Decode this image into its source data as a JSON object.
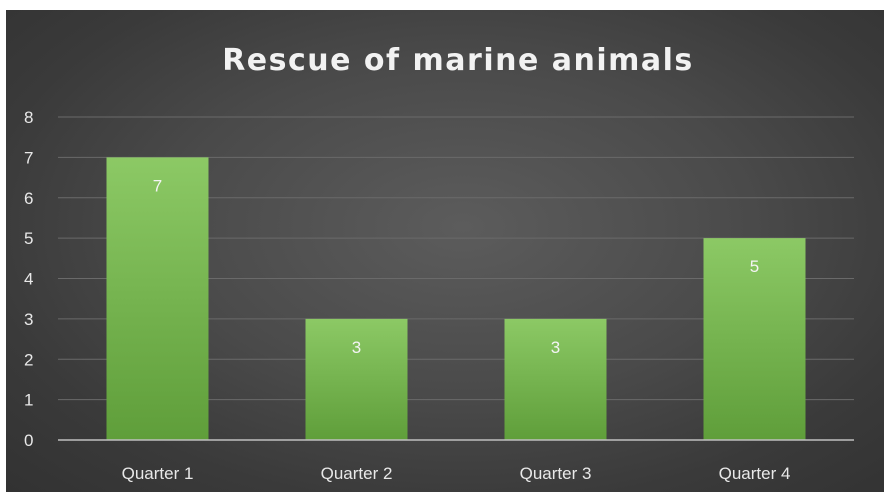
{
  "chart_data": {
    "type": "bar",
    "title": "Rescue of marine animals",
    "xlabel": "",
    "ylabel": "",
    "categories": [
      "Quarter 1",
      "Quarter 2",
      "Quarter 3",
      "Quarter 4"
    ],
    "values": [
      7,
      3,
      3,
      5
    ],
    "data_labels": [
      "7",
      "3",
      "3",
      "5"
    ],
    "y_ticks": [
      "0",
      "1",
      "2",
      "3",
      "4",
      "5",
      "6",
      "7",
      "8"
    ],
    "ylim": [
      0,
      8
    ],
    "grid": true,
    "legend": "none",
    "colors": {
      "bar_top": "#8cc965",
      "bar_bottom": "#5f9e3a",
      "grid": "#6a6a6a",
      "axis": "#bfbfbf"
    }
  }
}
